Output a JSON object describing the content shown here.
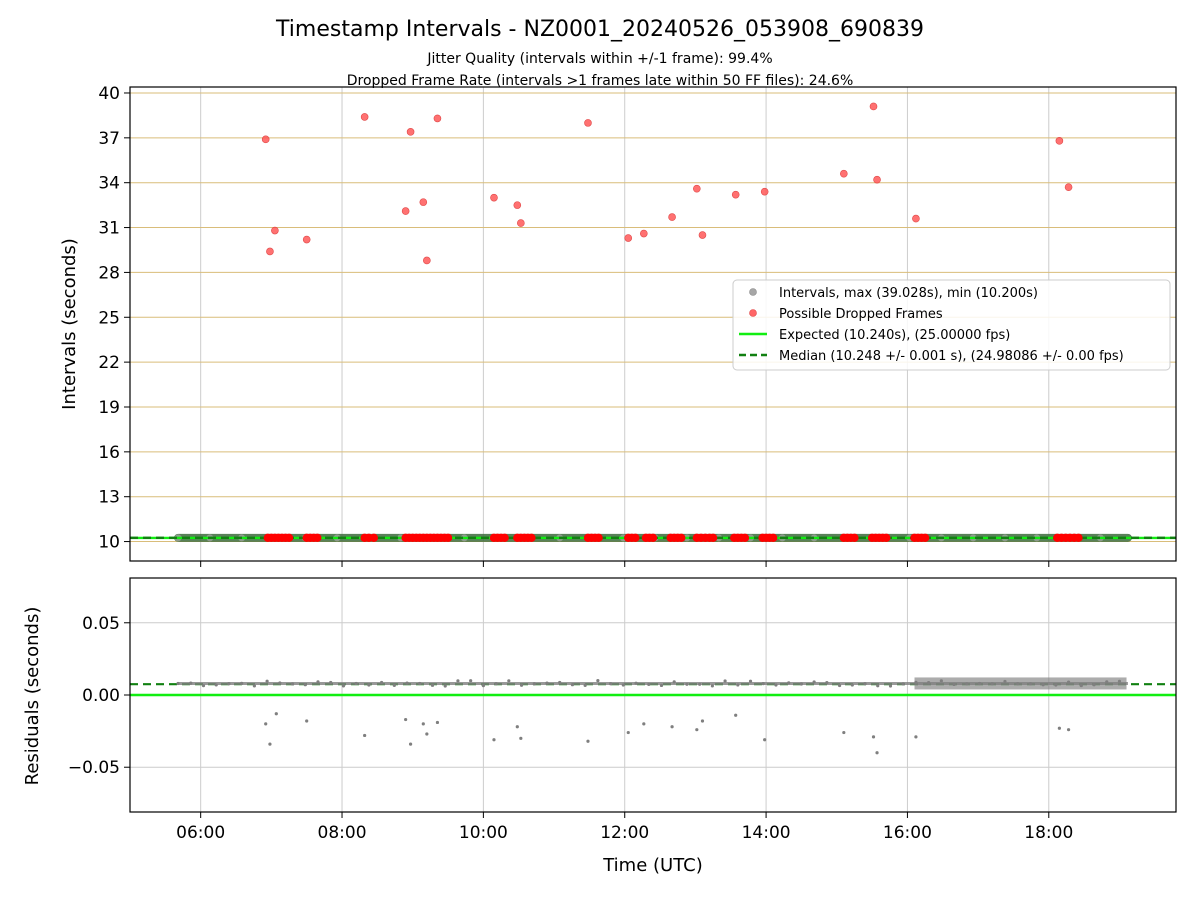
{
  "figure": {
    "title": "Timestamp Intervals - NZ0001_20240526_053908_690839",
    "subtitle_1": "Jitter Quality (intervals within +/-1 frame): 99.4%",
    "subtitle_2": "Dropped Frame Rate (intervals >1 frames late within 50 FF files): 24.6%"
  },
  "chart_data": [
    {
      "type": "scatter",
      "ylabel": "Intervals (seconds)",
      "xlim_hours": [
        5.0,
        19.8
      ],
      "ylim": [
        8.7,
        40.4
      ],
      "yticks": [
        10,
        13,
        16,
        19,
        22,
        25,
        28,
        31,
        34,
        37,
        40
      ],
      "grid": "on",
      "legend_position": "right",
      "legend": [
        "Intervals, max (39.028s), min (10.200s)",
        "Possible Dropped Frames",
        "Expected (10.240s), (25.00000 fps)",
        "Median (10.248 +/- 0.001 s), (24.98086 +/- 0.00 fps)"
      ],
      "expected_line_y": 10.24,
      "median_line_y": 10.248,
      "intervals_x_range_hours": [
        5.68,
        19.12
      ],
      "intervals_y": 10.248,
      "dropped_frames_cluster_y": 10.25,
      "dropped_frames_cluster_x_hours": [
        6.95,
        7.0,
        7.05,
        7.1,
        7.15,
        7.2,
        7.25,
        7.5,
        7.55,
        7.6,
        7.65,
        8.32,
        8.38,
        8.45,
        8.9,
        8.95,
        9.0,
        9.05,
        9.1,
        9.15,
        9.2,
        9.25,
        9.3,
        9.35,
        9.4,
        9.45,
        9.5,
        10.15,
        10.2,
        10.25,
        10.3,
        10.48,
        10.53,
        10.58,
        10.63,
        10.68,
        11.48,
        11.53,
        11.58,
        11.63,
        12.05,
        12.1,
        12.15,
        12.3,
        12.35,
        12.4,
        12.65,
        12.7,
        12.75,
        12.8,
        13.02,
        13.08,
        13.14,
        13.2,
        13.25,
        13.55,
        13.6,
        13.65,
        13.7,
        13.95,
        14.0,
        14.05,
        14.1,
        15.1,
        15.15,
        15.2,
        15.25,
        15.5,
        15.55,
        15.6,
        15.65,
        15.7,
        16.1,
        16.15,
        16.2,
        16.25,
        18.12,
        18.18,
        18.24,
        18.3,
        18.36,
        18.42
      ],
      "dropped_frames_high": [
        {
          "x": 6.92,
          "y": 36.9
        },
        {
          "x": 6.98,
          "y": 29.4
        },
        {
          "x": 7.05,
          "y": 30.8
        },
        {
          "x": 7.5,
          "y": 30.2
        },
        {
          "x": 8.32,
          "y": 38.4
        },
        {
          "x": 8.9,
          "y": 32.1
        },
        {
          "x": 8.97,
          "y": 37.4
        },
        {
          "x": 9.15,
          "y": 32.7
        },
        {
          "x": 9.2,
          "y": 28.8
        },
        {
          "x": 9.35,
          "y": 38.3
        },
        {
          "x": 10.15,
          "y": 33.0
        },
        {
          "x": 10.48,
          "y": 32.5
        },
        {
          "x": 10.53,
          "y": 31.3
        },
        {
          "x": 11.48,
          "y": 38.0
        },
        {
          "x": 12.05,
          "y": 30.3
        },
        {
          "x": 12.27,
          "y": 30.6
        },
        {
          "x": 12.67,
          "y": 31.7
        },
        {
          "x": 13.02,
          "y": 33.6
        },
        {
          "x": 13.1,
          "y": 30.5
        },
        {
          "x": 13.57,
          "y": 33.2
        },
        {
          "x": 13.98,
          "y": 33.4
        },
        {
          "x": 15.1,
          "y": 34.6
        },
        {
          "x": 15.52,
          "y": 39.1
        },
        {
          "x": 15.57,
          "y": 34.2
        },
        {
          "x": 16.12,
          "y": 31.6
        },
        {
          "x": 18.15,
          "y": 36.8
        },
        {
          "x": 18.28,
          "y": 33.7
        }
      ]
    },
    {
      "type": "scatter",
      "xlabel": "Time (UTC)",
      "ylabel": "Residuals (seconds)",
      "xlim_hours": [
        5.0,
        19.8
      ],
      "ylim": [
        -0.081,
        0.081
      ],
      "yticks": [
        0.05,
        0.0,
        -0.05
      ],
      "ytick_labels": [
        "0.05",
        "0.00",
        "−0.05"
      ],
      "xticks_hours": [
        6,
        8,
        10,
        12,
        14,
        16,
        18
      ],
      "xtick_labels": [
        "06:00",
        "08:00",
        "10:00",
        "12:00",
        "14:00",
        "16:00",
        "18:00"
      ],
      "grid": "on",
      "zero_line_y": 0.0,
      "median_line_y": 0.0075,
      "residual_band_y": 0.008,
      "residual_band_x_hours": [
        5.68,
        19.12
      ],
      "dense_band_x_hours": [
        16.1,
        19.1
      ],
      "negative_residuals": [
        {
          "x": 6.92,
          "y": -0.02
        },
        {
          "x": 6.98,
          "y": -0.034
        },
        {
          "x": 7.07,
          "y": -0.013
        },
        {
          "x": 7.5,
          "y": -0.018
        },
        {
          "x": 8.32,
          "y": -0.028
        },
        {
          "x": 8.9,
          "y": -0.017
        },
        {
          "x": 8.97,
          "y": -0.034
        },
        {
          "x": 9.15,
          "y": -0.02
        },
        {
          "x": 9.2,
          "y": -0.027
        },
        {
          "x": 9.35,
          "y": -0.019
        },
        {
          "x": 10.15,
          "y": -0.031
        },
        {
          "x": 10.48,
          "y": -0.022
        },
        {
          "x": 10.53,
          "y": -0.03
        },
        {
          "x": 11.48,
          "y": -0.032
        },
        {
          "x": 12.05,
          "y": -0.026
        },
        {
          "x": 12.27,
          "y": -0.02
        },
        {
          "x": 12.67,
          "y": -0.022
        },
        {
          "x": 13.02,
          "y": -0.024
        },
        {
          "x": 13.1,
          "y": -0.018
        },
        {
          "x": 13.57,
          "y": -0.014
        },
        {
          "x": 13.98,
          "y": -0.031
        },
        {
          "x": 15.1,
          "y": -0.026
        },
        {
          "x": 15.52,
          "y": -0.029
        },
        {
          "x": 15.57,
          "y": -0.04
        },
        {
          "x": 16.12,
          "y": -0.029
        },
        {
          "x": 18.15,
          "y": -0.023
        },
        {
          "x": 18.28,
          "y": -0.024
        }
      ]
    }
  ],
  "colors": {
    "intervals": "#a6a6a6",
    "intervals_line": "#3d6b3d",
    "dropped": "#ff4d4d",
    "dropped_cluster": "#ff0000",
    "expected": "#11ee11",
    "median": "#118011",
    "grid_horizontal_top": "#d9bd7a",
    "grid": "#cccccc",
    "residual": "#7f7f7f"
  }
}
